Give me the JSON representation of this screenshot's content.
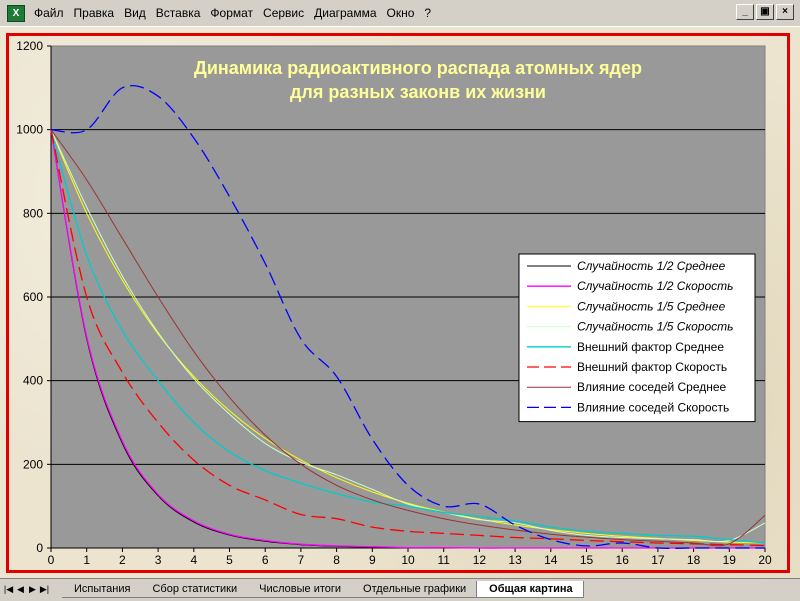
{
  "menu": {
    "items": [
      "Файл",
      "Правка",
      "Вид",
      "Вставка",
      "Формат",
      "Сервис",
      "Диаграмма",
      "Окно",
      "?"
    ],
    "window_buttons": [
      "_",
      "▣",
      "×"
    ]
  },
  "tabs": {
    "nav": [
      "|◀",
      "◀",
      "▶",
      "▶|"
    ],
    "items": [
      "Испытания",
      "Сбор статистики",
      "Числовые итоги",
      "Отдельные графики",
      "Общая картина"
    ],
    "active_index": 4
  },
  "chart_data": {
    "type": "line",
    "title": "Динамика радиоактивного распада атомных ядер",
    "subtitle": "для разных законв их жизни",
    "xlabel": "",
    "ylabel": "",
    "x": [
      0,
      1,
      2,
      3,
      4,
      5,
      6,
      7,
      8,
      9,
      10,
      11,
      12,
      13,
      14,
      15,
      16,
      17,
      18,
      19,
      20
    ],
    "xlim": [
      0,
      20
    ],
    "ylim": [
      0,
      1200
    ],
    "yticks": [
      0,
      200,
      400,
      600,
      800,
      1000,
      1200
    ],
    "grid": true,
    "legend_position": "right",
    "colors": {
      "plot_bg": "#999999",
      "gridline": "#000000",
      "frame": "#e00000",
      "title": "#ffff99"
    },
    "series": [
      {
        "name": "Случайность 1/2 Среднее",
        "color": "#000000",
        "dash": "",
        "width": 1,
        "values": [
          1000,
          500,
          250,
          125,
          62,
          31,
          16,
          8,
          4,
          2,
          1,
          0,
          0,
          0,
          0,
          0,
          0,
          0,
          0,
          0,
          0
        ]
      },
      {
        "name": "Случайность 1/2 Скорость",
        "color": "#ff00ff",
        "dash": "",
        "width": 1.3,
        "values": [
          1000,
          505,
          255,
          128,
          65,
          33,
          18,
          9,
          5,
          3,
          1,
          1,
          0,
          0,
          0,
          0,
          0,
          0,
          0,
          0,
          0
        ]
      },
      {
        "name": "Случайность 1/5 Среднее",
        "color": "#ffff00",
        "dash": "",
        "width": 1,
        "values": [
          1000,
          800,
          640,
          512,
          410,
          328,
          262,
          210,
          168,
          134,
          107,
          86,
          69,
          55,
          44,
          35,
          28,
          23,
          18,
          14,
          12
        ]
      },
      {
        "name": "Случайность 1/5 Скорость",
        "color": "#ccffcc",
        "dash": "",
        "width": 1,
        "values": [
          1000,
          815,
          650,
          515,
          405,
          320,
          250,
          205,
          175,
          140,
          105,
          85,
          68,
          60,
          42,
          30,
          25,
          22,
          20,
          18,
          60
        ]
      },
      {
        "name": "Внешний фактор Среднее",
        "color": "#00cccc",
        "dash": "",
        "width": 1.3,
        "values": [
          1000,
          700,
          520,
          400,
          300,
          230,
          185,
          155,
          130,
          110,
          100,
          85,
          75,
          65,
          50,
          40,
          35,
          30,
          28,
          20,
          12
        ]
      },
      {
        "name": "Внешний фактор Скорость",
        "color": "#ff0000",
        "dash": "14,6",
        "width": 1.3,
        "values": [
          1000,
          600,
          420,
          300,
          210,
          150,
          115,
          80,
          70,
          50,
          40,
          35,
          30,
          25,
          22,
          18,
          15,
          12,
          10,
          8,
          6
        ]
      },
      {
        "name": "Влияние соседей Среднее",
        "color": "#993333",
        "dash": "",
        "width": 1,
        "values": [
          1000,
          880,
          740,
          600,
          470,
          360,
          270,
          200,
          150,
          115,
          90,
          70,
          55,
          43,
          33,
          26,
          20,
          16,
          12,
          10,
          78
        ]
      },
      {
        "name": "Влияние соседей Скорость",
        "color": "#0000ff",
        "dash": "14,6",
        "width": 1.3,
        "values": [
          1000,
          1000,
          1100,
          1080,
          980,
          840,
          680,
          500,
          410,
          260,
          150,
          100,
          105,
          55,
          20,
          5,
          12,
          0,
          0,
          0,
          0
        ]
      }
    ]
  }
}
